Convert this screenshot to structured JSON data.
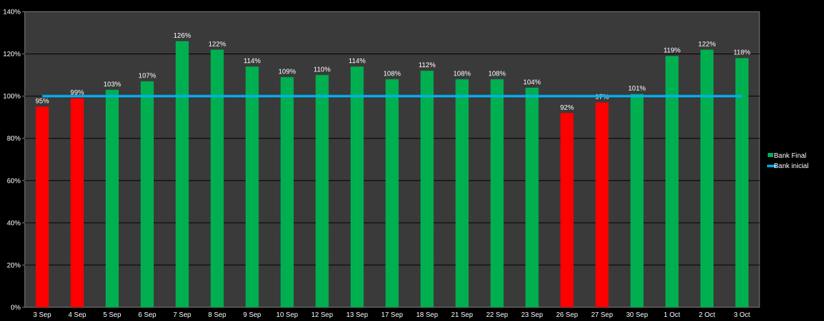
{
  "chart_data": {
    "type": "bar",
    "categories": [
      "3 Sep",
      "4 Sep",
      "5 Sep",
      "6 Sep",
      "7 Sep",
      "8 Sep",
      "9 Sep",
      "10 Sep",
      "12 Sep",
      "13 Sep",
      "17 Sep",
      "18 Sep",
      "21 Sep",
      "22 Sep",
      "23 Sep",
      "26 Sep",
      "27 Sep",
      "30 Sep",
      "1 Oct",
      "2 Oct",
      "3 Oct"
    ],
    "series": [
      {
        "name": "Bank Final",
        "type": "bar",
        "values": [
          95,
          99,
          103,
          107,
          126,
          122,
          114,
          109,
          110,
          114,
          108,
          112,
          108,
          108,
          104,
          92,
          97,
          101,
          119,
          122,
          118
        ],
        "data_labels": [
          "95%",
          "99%",
          "103%",
          "107%",
          "126%",
          "122%",
          "114%",
          "109%",
          "110%",
          "114%",
          "108%",
          "112%",
          "108%",
          "108%",
          "104%",
          "92%",
          "97%",
          "101%",
          "119%",
          "122%",
          "118%"
        ],
        "color_up": "#00b050",
        "color_down": "#ff0000"
      },
      {
        "name": "Bank inicial",
        "type": "line",
        "values": [
          100,
          100,
          100,
          100,
          100,
          100,
          100,
          100,
          100,
          100,
          100,
          100,
          100,
          100,
          100,
          100,
          100,
          100,
          100,
          100,
          100
        ],
        "color": "#00b0f0"
      }
    ],
    "ylim": [
      0,
      140
    ],
    "yticks": [
      0,
      20,
      40,
      60,
      80,
      100,
      120,
      140
    ],
    "ytick_labels": [
      "0%",
      "20%",
      "40%",
      "60%",
      "80%",
      "100%",
      "120%",
      "140%"
    ],
    "grid": true,
    "legend_position": "right",
    "colors": {
      "background": "#000000",
      "plot_background": "#3a3a3a",
      "gridline": "#000000",
      "text": "#ffffff"
    }
  }
}
